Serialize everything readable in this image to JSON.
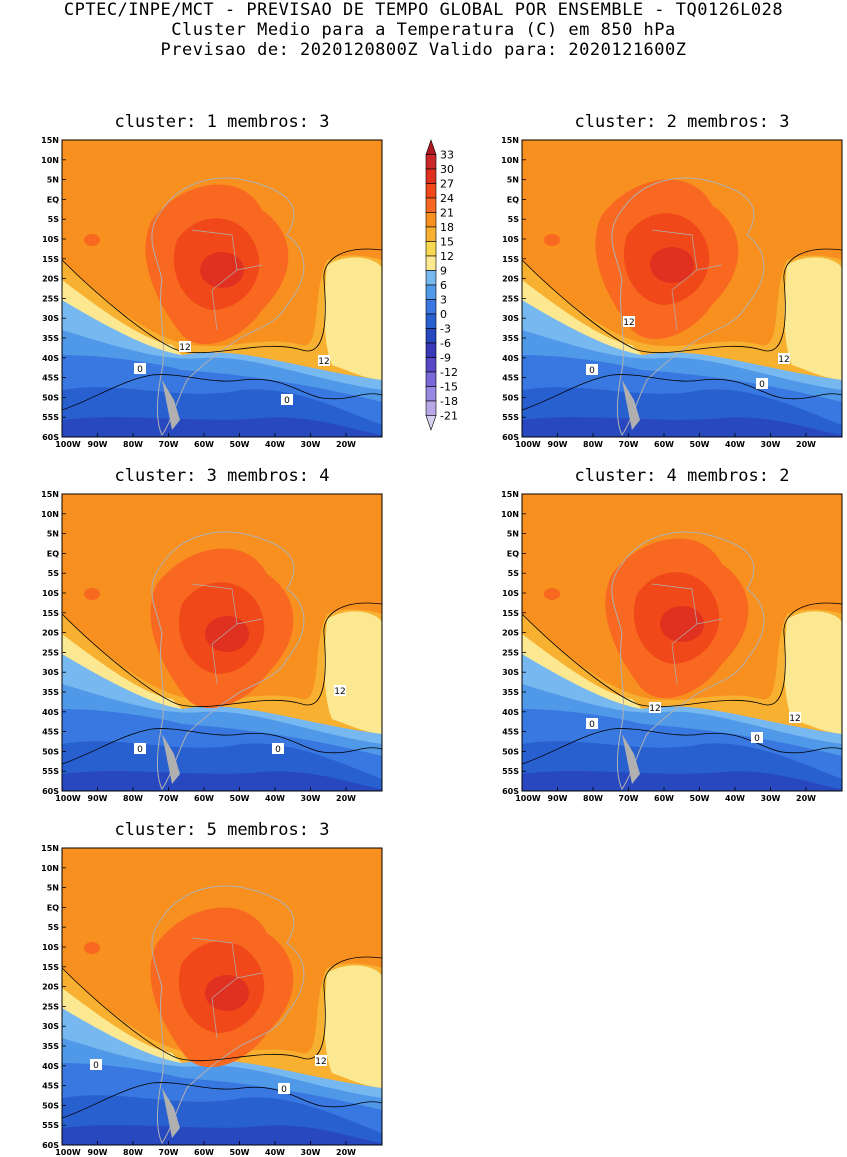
{
  "header": {
    "line1": "CPTEC/INPE/MCT - PREVISAO DE TEMPO GLOBAL POR ENSEMBLE - TQ0126L028",
    "line2": "Cluster Medio para a Temperatura (C) em 850 hPa",
    "line3": "Previsao de: 2020120800Z   Valido para: 2020121600Z"
  },
  "panels": [
    {
      "title": "cluster: 1   membros: 3",
      "labels": [
        {
          "t": "12"
        },
        {
          "t": "12"
        },
        {
          "t": "0"
        },
        {
          "t": "0"
        }
      ]
    },
    {
      "title": "cluster: 2   membros: 3",
      "labels": [
        {
          "t": "12"
        },
        {
          "t": "12"
        },
        {
          "t": "0"
        },
        {
          "t": "0"
        }
      ]
    },
    {
      "title": "cluster: 3   membros: 4",
      "labels": [
        {
          "t": "12"
        },
        {
          "t": "0"
        },
        {
          "t": "0"
        }
      ]
    },
    {
      "title": "cluster: 4   membros: 2",
      "labels": [
        {
          "t": "12"
        },
        {
          "t": "12"
        },
        {
          "t": "0"
        },
        {
          "t": "0"
        }
      ]
    },
    {
      "title": "cluster: 5   membros: 3",
      "labels": [
        {
          "t": "12"
        },
        {
          "t": "0"
        },
        {
          "t": "0"
        }
      ]
    }
  ],
  "axes": {
    "lat": [
      "15N",
      "10N",
      "5N",
      "EQ",
      "5S",
      "10S",
      "15S",
      "20S",
      "25S",
      "30S",
      "35S",
      "40S",
      "45S",
      "50S",
      "55S",
      "60S"
    ],
    "lon": [
      "100W",
      "90W",
      "80W",
      "70W",
      "60W",
      "50W",
      "40W",
      "30W",
      "20W"
    ]
  },
  "colorbar": {
    "labels": [
      "33",
      "30",
      "27",
      "24",
      "21",
      "18",
      "15",
      "12",
      "9",
      "6",
      "3",
      "0",
      "-3",
      "-6",
      "-9",
      "-12",
      "-15",
      "-18",
      "-21"
    ],
    "colors": [
      "#b01820",
      "#c82828",
      "#e03020",
      "#f04818",
      "#f86820",
      "#f89020",
      "#f8b030",
      "#f8d850",
      "#fce890",
      "#78b8f0",
      "#5098e8",
      "#3878e0",
      "#2860d0",
      "#2848c0",
      "#3838b8",
      "#5848c8",
      "#7868d8",
      "#9888e0",
      "#b8a8e8",
      "#d8d0f0"
    ]
  },
  "colors": {
    "warm": "#f89020",
    "warm2": "#f8b030",
    "hot": "#f86820",
    "hotter": "#f04818",
    "hottest": "#e03020",
    "light": "#fce890",
    "cool1": "#78b8f0",
    "cool2": "#5098e8",
    "cool3": "#3878e0",
    "cool4": "#2860d0",
    "cool5": "#2848c0",
    "land": "#b0b0b0"
  }
}
